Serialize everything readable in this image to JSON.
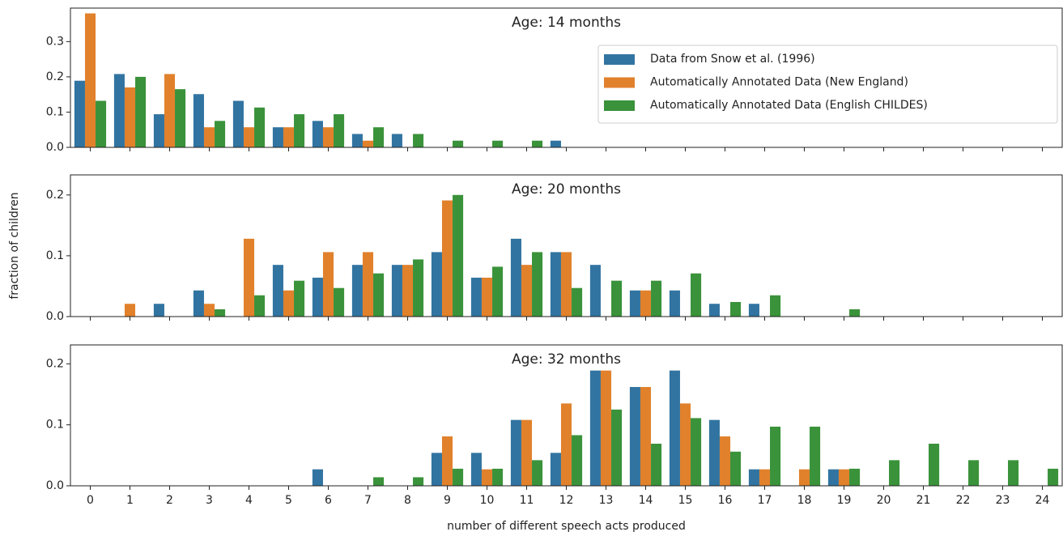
{
  "chart_data": [
    {
      "type": "bar",
      "title": "Age: 14 months",
      "legend": "upper right",
      "ylim": [
        0,
        0.395
      ],
      "yticks": [
        {
          "value": 0,
          "label": "0.0"
        },
        0.1,
        0.2,
        0.3
      ],
      "series": [
        {
          "name": "Data from Snow et al. (1996)",
          "color": "#3274a1",
          "values": [
            0.189,
            0.208,
            0.094,
            0.151,
            0.132,
            0.057,
            0.075,
            0.038,
            0.038,
            0,
            0,
            0,
            0.019,
            0,
            0,
            0,
            0,
            0,
            0,
            0,
            0,
            0,
            0,
            0,
            0
          ]
        },
        {
          "name": "Automatically Annotated Data (New England)",
          "color": "#e1812c",
          "values": [
            0.38,
            0.17,
            0.208,
            0.057,
            0.057,
            0.057,
            0.057,
            0.019,
            0,
            0,
            0,
            0,
            0,
            0,
            0,
            0,
            0,
            0,
            0,
            0,
            0,
            0,
            0,
            0,
            0
          ]
        },
        {
          "name": "Automatically Annotated Data (English CHILDES)",
          "color": "#3a923a",
          "values": [
            0.132,
            0.2,
            0.165,
            0.075,
            0.113,
            0.094,
            0.094,
            0.057,
            0.038,
            0.019,
            0.019,
            0.019,
            0,
            0,
            0,
            0,
            0,
            0,
            0,
            0,
            0,
            0,
            0,
            0,
            0
          ]
        }
      ]
    },
    {
      "type": "bar",
      "title": "Age: 20 months",
      "ylabel": "fraction of children",
      "ylim": [
        0,
        0.233
      ],
      "yticks": [
        {
          "value": 0,
          "label": "0.0"
        },
        0.1,
        0.2
      ],
      "series": [
        {
          "color": "#3274a1",
          "values": [
            0,
            0,
            0.021,
            0.043,
            0,
            0.085,
            0.064,
            0.085,
            0.085,
            0.106,
            0.064,
            0.128,
            0.106,
            0.085,
            0.043,
            0.043,
            0.021,
            0.021,
            0,
            0,
            0,
            0,
            0,
            0,
            0
          ]
        },
        {
          "color": "#e1812c",
          "values": [
            0,
            0.021,
            0,
            0.021,
            0.128,
            0.043,
            0.106,
            0.106,
            0.085,
            0.191,
            0.064,
            0.085,
            0.106,
            0,
            0.043,
            0,
            0,
            0,
            0,
            0,
            0,
            0,
            0,
            0,
            0
          ]
        },
        {
          "color": "#3a923a",
          "values": [
            0,
            0,
            0,
            0.012,
            0.035,
            0.059,
            0.047,
            0.071,
            0.094,
            0.2,
            0.082,
            0.106,
            0.047,
            0.059,
            0.059,
            0.071,
            0.024,
            0.035,
            0,
            0.012,
            0,
            0,
            0,
            0,
            0
          ]
        }
      ]
    },
    {
      "type": "bar",
      "title": "Age: 32 months",
      "xlabel": "number of different speech acts produced",
      "categories": [
        "0",
        "1",
        "2",
        "3",
        "4",
        "5",
        "6",
        "7",
        "8",
        "9",
        "10",
        "11",
        "12",
        "13",
        "14",
        "15",
        "16",
        "17",
        "18",
        "19",
        "20",
        "21",
        "22",
        "23",
        "24"
      ],
      "ylim": [
        0,
        0.231
      ],
      "yticks": [
        {
          "value": 0,
          "label": "0.0"
        },
        0.1,
        0.2
      ],
      "series": [
        {
          "color": "#3274a1",
          "values": [
            0,
            0,
            0,
            0,
            0,
            0,
            0.027,
            0,
            0,
            0.054,
            0.054,
            0.108,
            0.054,
            0.189,
            0.162,
            0.189,
            0.108,
            0.027,
            0,
            0.027,
            0,
            0,
            0,
            0,
            0
          ]
        },
        {
          "color": "#e1812c",
          "values": [
            0,
            0,
            0,
            0,
            0,
            0,
            0,
            0,
            0,
            0.081,
            0.027,
            0.108,
            0.135,
            0.189,
            0.162,
            0.135,
            0.081,
            0.027,
            0.027,
            0.027,
            0,
            0,
            0,
            0,
            0
          ]
        },
        {
          "color": "#3a923a",
          "values": [
            0,
            0,
            0,
            0,
            0,
            0,
            0,
            0.014,
            0.014,
            0.028,
            0.028,
            0.042,
            0.083,
            0.125,
            0.069,
            0.111,
            0.056,
            0.097,
            0.097,
            0.028,
            0.042,
            0.069,
            0.042,
            0.042,
            0.028
          ]
        }
      ]
    }
  ]
}
